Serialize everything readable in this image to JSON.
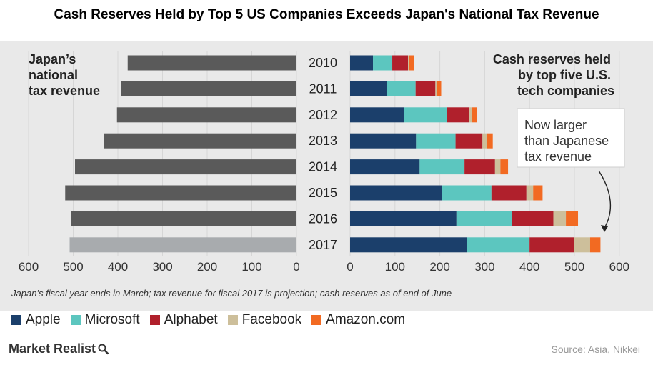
{
  "title": "Cash Reserves Held by Top 5 US Companies Exceeds Japan's National Tax Revenue",
  "left_label": [
    "Japan’s",
    "national",
    "tax revenue"
  ],
  "right_label": [
    "Cash reserves held",
    "by top five U.S.",
    "tech companies"
  ],
  "annotation": [
    "Now larger",
    "than Japanese",
    "tax revenue"
  ],
  "footnote": "Japan’s fiscal year ends in March; tax revenue for fiscal 2017 is projection; cash reserves as of end of June",
  "source": "Source: Asia, Nikkei",
  "brand": "Market Realist",
  "brand_icon": "magnifier-icon",
  "colors": {
    "japan": "#5a5a5a",
    "japan_projection": "#a8abae",
    "Apple": "#1b3f6b",
    "Microsoft": "#5cc6bf",
    "Alphabet": "#b0202c",
    "Facebook": "#cdbf9b",
    "Amazon.com": "#f26a22"
  },
  "chart_data": [
    {
      "type": "bar",
      "orientation": "horizontal",
      "title": "Japan’s national tax revenue",
      "categories": [
        "2010",
        "2011",
        "2012",
        "2013",
        "2014",
        "2015",
        "2016",
        "2017"
      ],
      "values": [
        378,
        392,
        402,
        432,
        496,
        518,
        505,
        508
      ],
      "projection": [
        false,
        false,
        false,
        false,
        false,
        false,
        false,
        true
      ],
      "xlim": [
        600,
        0
      ],
      "xticks": [
        600,
        500,
        400,
        300,
        200,
        100,
        0
      ],
      "xlabel": "",
      "ylabel": ""
    },
    {
      "type": "bar",
      "stacked": true,
      "orientation": "horizontal",
      "title": "Cash reserves held by top five U.S. tech companies",
      "categories": [
        "2010",
        "2011",
        "2012",
        "2013",
        "2014",
        "2015",
        "2016",
        "2017"
      ],
      "series": [
        {
          "name": "Apple",
          "values": [
            51,
            82,
            121,
            147,
            155,
            205,
            237,
            261
          ]
        },
        {
          "name": "Microsoft",
          "values": [
            43,
            64,
            95,
            88,
            100,
            110,
            124,
            139
          ]
        },
        {
          "name": "Alphabet",
          "values": [
            35,
            44,
            50,
            60,
            68,
            78,
            92,
            100
          ]
        },
        {
          "name": "Facebook",
          "values": [
            2,
            3,
            6,
            10,
            12,
            15,
            28,
            35
          ]
        },
        {
          "name": "Amazon.com",
          "values": [
            11,
            10,
            11,
            13,
            17,
            21,
            27,
            23
          ]
        }
      ],
      "xlim": [
        0,
        600
      ],
      "xticks": [
        0,
        100,
        200,
        300,
        400,
        500,
        600
      ],
      "xlabel": "",
      "ylabel": ""
    }
  ],
  "legend": [
    {
      "name": "Apple",
      "color_key": "Apple"
    },
    {
      "name": "Microsoft",
      "color_key": "Microsoft"
    },
    {
      "name": "Alphabet",
      "color_key": "Alphabet"
    },
    {
      "name": "Facebook",
      "color_key": "Facebook"
    },
    {
      "name": "Amazon.com",
      "color_key": "Amazon.com"
    }
  ]
}
